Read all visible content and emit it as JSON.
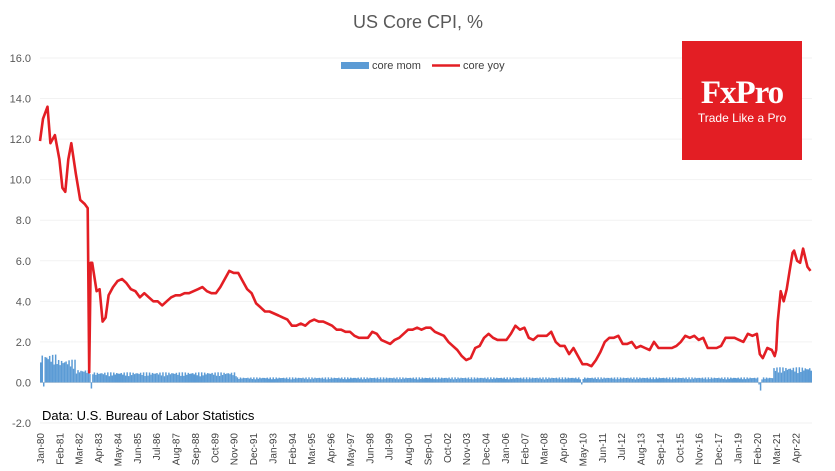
{
  "chart_data": {
    "type": "bar+line",
    "title": "US Core CPI, %",
    "ylim": [
      -2.0,
      16.0
    ],
    "yticks": [
      "16.0",
      "14.0",
      "12.0",
      "10.0",
      "8.0",
      "6.0",
      "4.0",
      "2.0",
      "0.0",
      "-2.0"
    ],
    "x_tick_labels": [
      "Jan-80",
      "Feb-81",
      "Mar-82",
      "Apr-83",
      "May-84",
      "Jun-85",
      "Jul-86",
      "Aug-87",
      "Sep-88",
      "Oct-89",
      "Nov-90",
      "Dec-91",
      "Jan-93",
      "Feb-94",
      "Mar-95",
      "Apr-96",
      "May-97",
      "Jun-98",
      "Jul-99",
      "Aug-00",
      "Sep-01",
      "Oct-02",
      "Nov-03",
      "Dec-04",
      "Jan-06",
      "Feb-07",
      "Mar-08",
      "Apr-09",
      "May-10",
      "Jun-11",
      "Jul-12",
      "Aug-13",
      "Sep-14",
      "Oct-15",
      "Nov-16",
      "Dec-17",
      "Jan-19",
      "Feb-20",
      "Mar-21",
      "Apr-22"
    ],
    "grid": true,
    "legend_position": "top",
    "series": [
      {
        "name": "core mom",
        "kind": "bar",
        "color": "#5b9bd5",
        "approx_values_by_period": [
          {
            "period": "1980",
            "value": 1.1
          },
          {
            "period": "1981",
            "value": 0.9
          },
          {
            "period": "1982",
            "value": 0.5
          },
          {
            "period": "1983-1990",
            "value": 0.4
          },
          {
            "period": "1991-2007",
            "value": 0.2
          },
          {
            "period": "2008-2020",
            "value": 0.2
          },
          {
            "period": "Apr-20",
            "value": -0.4
          },
          {
            "period": "2021-2022",
            "value": 0.6
          }
        ]
      },
      {
        "name": "core yoy",
        "kind": "line",
        "color": "#e31e24",
        "points": [
          [
            "Jan-80",
            11.9
          ],
          [
            "Mar-80",
            13.0
          ],
          [
            "Jun-80",
            13.6
          ],
          [
            "Aug-80",
            11.8
          ],
          [
            "Nov-80",
            12.2
          ],
          [
            "Feb-81",
            11.0
          ],
          [
            "Apr-81",
            9.6
          ],
          [
            "Jun-81",
            9.4
          ],
          [
            "Aug-81",
            11.0
          ],
          [
            "Oct-81",
            11.8
          ],
          [
            "Jan-82",
            10.3
          ],
          [
            "Apr-82",
            9.0
          ],
          [
            "Jul-82",
            8.8
          ],
          [
            "Sep-82",
            8.6
          ],
          [
            "Oct-82",
            0.5
          ],
          [
            "Nov-82",
            5.9
          ],
          [
            "Dec-82",
            5.9
          ],
          [
            "Mar-83",
            4.5
          ],
          [
            "May-83",
            4.6
          ],
          [
            "Jul-83",
            3.0
          ],
          [
            "Sep-83",
            3.2
          ],
          [
            "Nov-83",
            4.3
          ],
          [
            "Feb-84",
            4.7
          ],
          [
            "May-84",
            5.0
          ],
          [
            "Aug-84",
            5.1
          ],
          [
            "Nov-84",
            4.9
          ],
          [
            "Feb-85",
            4.6
          ],
          [
            "May-85",
            4.5
          ],
          [
            "Aug-85",
            4.2
          ],
          [
            "Nov-85",
            4.4
          ],
          [
            "Feb-86",
            4.2
          ],
          [
            "May-86",
            4.0
          ],
          [
            "Aug-86",
            4.0
          ],
          [
            "Nov-86",
            3.8
          ],
          [
            "Feb-87",
            4.0
          ],
          [
            "May-87",
            4.2
          ],
          [
            "Aug-87",
            4.3
          ],
          [
            "Nov-87",
            4.3
          ],
          [
            "Feb-88",
            4.4
          ],
          [
            "May-88",
            4.4
          ],
          [
            "Aug-88",
            4.5
          ],
          [
            "Nov-88",
            4.6
          ],
          [
            "Feb-89",
            4.7
          ],
          [
            "May-89",
            4.5
          ],
          [
            "Aug-89",
            4.4
          ],
          [
            "Nov-89",
            4.4
          ],
          [
            "Feb-90",
            4.7
          ],
          [
            "May-90",
            5.1
          ],
          [
            "Aug-90",
            5.5
          ],
          [
            "Nov-90",
            5.4
          ],
          [
            "Feb-91",
            5.4
          ],
          [
            "May-91",
            5.0
          ],
          [
            "Aug-91",
            4.6
          ],
          [
            "Nov-91",
            4.4
          ],
          [
            "Feb-92",
            3.9
          ],
          [
            "May-92",
            3.7
          ],
          [
            "Aug-92",
            3.5
          ],
          [
            "Nov-92",
            3.5
          ],
          [
            "Feb-93",
            3.4
          ],
          [
            "May-93",
            3.3
          ],
          [
            "Aug-93",
            3.2
          ],
          [
            "Nov-93",
            3.1
          ],
          [
            "Feb-94",
            2.8
          ],
          [
            "May-94",
            2.8
          ],
          [
            "Aug-94",
            2.9
          ],
          [
            "Nov-94",
            2.8
          ],
          [
            "Feb-95",
            3.0
          ],
          [
            "May-95",
            3.1
          ],
          [
            "Aug-95",
            3.0
          ],
          [
            "Nov-95",
            3.0
          ],
          [
            "Feb-96",
            2.9
          ],
          [
            "May-96",
            2.8
          ],
          [
            "Aug-96",
            2.6
          ],
          [
            "Nov-96",
            2.6
          ],
          [
            "Feb-97",
            2.5
          ],
          [
            "May-97",
            2.5
          ],
          [
            "Aug-97",
            2.3
          ],
          [
            "Nov-97",
            2.2
          ],
          [
            "Feb-98",
            2.2
          ],
          [
            "May-98",
            2.2
          ],
          [
            "Aug-98",
            2.5
          ],
          [
            "Nov-98",
            2.4
          ],
          [
            "Feb-99",
            2.1
          ],
          [
            "May-99",
            2.0
          ],
          [
            "Aug-99",
            1.9
          ],
          [
            "Nov-99",
            2.1
          ],
          [
            "Feb-00",
            2.2
          ],
          [
            "May-00",
            2.4
          ],
          [
            "Aug-00",
            2.6
          ],
          [
            "Nov-00",
            2.6
          ],
          [
            "Feb-01",
            2.7
          ],
          [
            "May-01",
            2.6
          ],
          [
            "Aug-01",
            2.7
          ],
          [
            "Nov-01",
            2.7
          ],
          [
            "Feb-02",
            2.5
          ],
          [
            "May-02",
            2.4
          ],
          [
            "Aug-02",
            2.3
          ],
          [
            "Nov-02",
            2.0
          ],
          [
            "Feb-03",
            1.8
          ],
          [
            "May-03",
            1.6
          ],
          [
            "Aug-03",
            1.3
          ],
          [
            "Nov-03",
            1.1
          ],
          [
            "Feb-04",
            1.2
          ],
          [
            "May-04",
            1.7
          ],
          [
            "Aug-04",
            1.8
          ],
          [
            "Nov-04",
            2.2
          ],
          [
            "Feb-05",
            2.4
          ],
          [
            "May-05",
            2.2
          ],
          [
            "Aug-05",
            2.1
          ],
          [
            "Nov-05",
            2.1
          ],
          [
            "Feb-06",
            2.1
          ],
          [
            "May-06",
            2.4
          ],
          [
            "Aug-06",
            2.8
          ],
          [
            "Nov-06",
            2.6
          ],
          [
            "Feb-07",
            2.7
          ],
          [
            "May-07",
            2.2
          ],
          [
            "Aug-07",
            2.1
          ],
          [
            "Nov-07",
            2.3
          ],
          [
            "Feb-08",
            2.3
          ],
          [
            "May-08",
            2.3
          ],
          [
            "Aug-08",
            2.5
          ],
          [
            "Nov-08",
            2.0
          ],
          [
            "Feb-09",
            1.8
          ],
          [
            "May-09",
            1.8
          ],
          [
            "Aug-09",
            1.4
          ],
          [
            "Nov-09",
            1.7
          ],
          [
            "Feb-10",
            1.3
          ],
          [
            "May-10",
            0.9
          ],
          [
            "Aug-10",
            0.9
          ],
          [
            "Nov-10",
            0.8
          ],
          [
            "Feb-11",
            1.1
          ],
          [
            "May-11",
            1.5
          ],
          [
            "Aug-11",
            2.0
          ],
          [
            "Nov-11",
            2.2
          ],
          [
            "Feb-12",
            2.2
          ],
          [
            "May-12",
            2.3
          ],
          [
            "Aug-12",
            1.9
          ],
          [
            "Nov-12",
            1.9
          ],
          [
            "Feb-13",
            2.0
          ],
          [
            "May-13",
            1.7
          ],
          [
            "Aug-13",
            1.8
          ],
          [
            "Nov-13",
            1.7
          ],
          [
            "Feb-14",
            1.6
          ],
          [
            "May-14",
            2.0
          ],
          [
            "Aug-14",
            1.7
          ],
          [
            "Nov-14",
            1.7
          ],
          [
            "Feb-15",
            1.7
          ],
          [
            "May-15",
            1.7
          ],
          [
            "Aug-15",
            1.8
          ],
          [
            "Nov-15",
            2.0
          ],
          [
            "Feb-16",
            2.3
          ],
          [
            "May-16",
            2.2
          ],
          [
            "Aug-16",
            2.3
          ],
          [
            "Nov-16",
            2.1
          ],
          [
            "Feb-17",
            2.2
          ],
          [
            "May-17",
            1.7
          ],
          [
            "Aug-17",
            1.7
          ],
          [
            "Nov-17",
            1.7
          ],
          [
            "Feb-18",
            1.8
          ],
          [
            "May-18",
            2.2
          ],
          [
            "Aug-18",
            2.2
          ],
          [
            "Nov-18",
            2.2
          ],
          [
            "Feb-19",
            2.1
          ],
          [
            "May-19",
            2.0
          ],
          [
            "Aug-19",
            2.4
          ],
          [
            "Nov-19",
            2.3
          ],
          [
            "Feb-20",
            2.4
          ],
          [
            "Apr-20",
            1.4
          ],
          [
            "Jun-20",
            1.2
          ],
          [
            "Sep-20",
            1.7
          ],
          [
            "Dec-20",
            1.6
          ],
          [
            "Feb-21",
            1.3
          ],
          [
            "Mar-21",
            1.6
          ],
          [
            "Apr-21",
            3.0
          ],
          [
            "Jun-21",
            4.5
          ],
          [
            "Aug-21",
            4.0
          ],
          [
            "Oct-21",
            4.6
          ],
          [
            "Dec-21",
            5.5
          ],
          [
            "Feb-22",
            6.4
          ],
          [
            "Mar-22",
            6.5
          ],
          [
            "May-22",
            6.0
          ],
          [
            "Jul-22",
            5.9
          ],
          [
            "Sep-22",
            6.6
          ],
          [
            "Nov-22",
            6.0
          ],
          [
            "Dec-22",
            5.7
          ],
          [
            "Jan-23",
            5.6
          ],
          [
            "Feb-23",
            5.5
          ]
        ]
      }
    ],
    "annotation": "Data: U.S. Bureau of Labor Statistics"
  },
  "brand": {
    "name": "FxPro",
    "tagline": "Trade Like a Pro",
    "color": "#e31e24"
  }
}
